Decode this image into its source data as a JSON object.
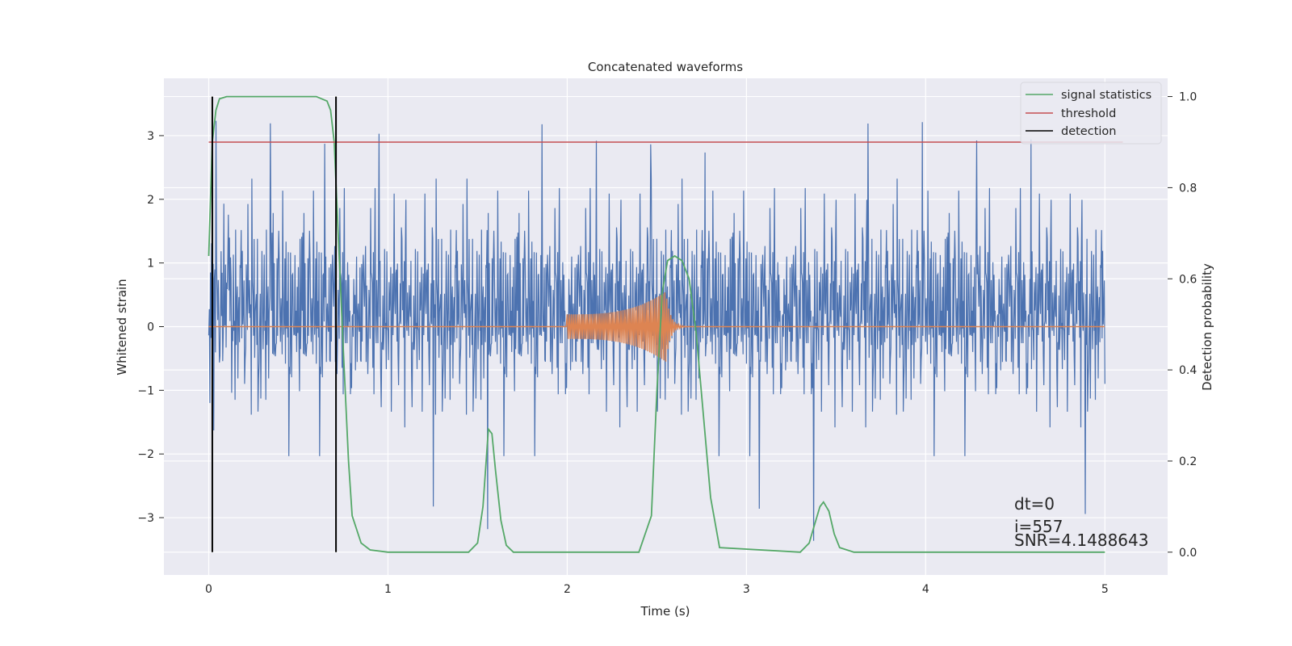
{
  "chart_data": {
    "type": "line",
    "title": "Concatenated waveforms",
    "xlabel": "Time (s)",
    "ylabel_left": "Whitened strain",
    "ylabel_right": "Detection probability",
    "xlim": [
      -0.25,
      5.35
    ],
    "ylim_left": [
      -3.9,
      3.9
    ],
    "ylim_right": [
      -0.05,
      1.04
    ],
    "x_ticks": [
      0,
      1,
      2,
      3,
      4,
      5
    ],
    "y_ticks_left": [
      -3,
      -2,
      -1,
      0,
      1,
      2,
      3
    ],
    "y_ticks_right": [
      0.0,
      0.2,
      0.4,
      0.6,
      0.8,
      1.0
    ],
    "x_tick_labels": [
      "0",
      "1",
      "2",
      "3",
      "4",
      "5"
    ],
    "y_tick_labels_left": [
      "−3",
      "−2",
      "−1",
      "0",
      "1",
      "2",
      "3"
    ],
    "y_tick_labels_right": [
      "0.0",
      "0.2",
      "0.4",
      "0.6",
      "0.8",
      "1.0"
    ],
    "grid": true,
    "legend_position": "top-right",
    "legend": [
      {
        "label": "signal statistics",
        "color": "#55a868"
      },
      {
        "label": "threshold",
        "color": "#c44e52"
      },
      {
        "label": "detection",
        "color": "#000000"
      }
    ],
    "series": [
      {
        "axis": "left",
        "color": "#4c72b0",
        "x_range": [
          0,
          5
        ],
        "typical_abs_amplitude": 1.8,
        "peak_values": [
          3.55,
          3.4,
          3.25,
          3.2,
          -3.15,
          -3.6
        ]
      },
      {
        "axis": "left",
        "color": "#dd8452",
        "x_range": [
          0,
          5
        ],
        "chirp_start": 2.0,
        "chirp_end": 2.7,
        "chirp_peak_amplitude": 0.55,
        "chirp_peak_time": 2.55
      },
      {
        "name": "signal statistics",
        "axis": "right",
        "color": "#55a868",
        "x": [
          0,
          0.02,
          0.04,
          0.06,
          0.1,
          0.2,
          0.6,
          0.66,
          0.68,
          0.7,
          0.72,
          0.75,
          0.78,
          0.8,
          0.85,
          0.9,
          1.0,
          1.45,
          1.5,
          1.53,
          1.56,
          1.58,
          1.6,
          1.63,
          1.66,
          1.7,
          2.4,
          2.47,
          2.5,
          2.53,
          2.56,
          2.6,
          2.64,
          2.68,
          2.72,
          2.76,
          2.8,
          2.85,
          3.3,
          3.35,
          3.38,
          3.41,
          3.43,
          3.46,
          3.49,
          3.52,
          3.6,
          5.0
        ],
        "y": [
          0.65,
          0.9,
          0.97,
          0.995,
          1.0,
          1.0,
          1.0,
          0.99,
          0.97,
          0.9,
          0.72,
          0.45,
          0.2,
          0.08,
          0.02,
          0.005,
          0.0,
          0.0,
          0.02,
          0.1,
          0.27,
          0.26,
          0.18,
          0.07,
          0.015,
          0.0,
          0.0,
          0.08,
          0.35,
          0.57,
          0.64,
          0.65,
          0.64,
          0.6,
          0.48,
          0.3,
          0.12,
          0.01,
          0.0,
          0.02,
          0.06,
          0.1,
          0.11,
          0.09,
          0.04,
          0.01,
          0.0,
          0.0
        ]
      },
      {
        "name": "threshold",
        "axis": "right",
        "color": "#c44e52",
        "x": [
          0,
          5.1
        ],
        "y": [
          0.9,
          0.9
        ]
      },
      {
        "name": "detection",
        "axis": "right",
        "color": "#000000",
        "vertical_lines": [
          0.02,
          0.71
        ],
        "y_range": [
          0.0,
          1.0
        ]
      }
    ],
    "annotations": [
      "dt=0",
      "i=557",
      "SNR=4.1488643"
    ]
  }
}
